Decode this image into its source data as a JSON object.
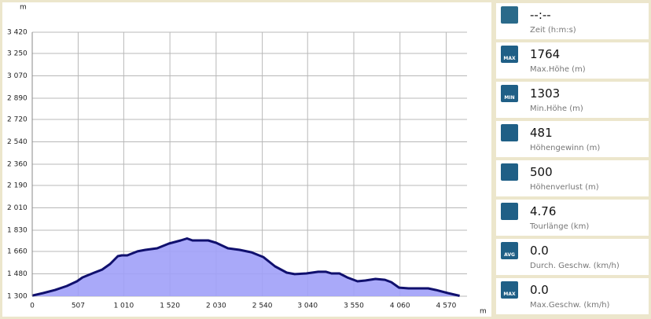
{
  "chart_data": {
    "type": "area",
    "y_unit": "m",
    "x_unit": "m",
    "x": [
      0,
      121,
      252,
      382,
      494,
      555,
      685,
      772,
      859,
      945,
      989,
      1049,
      1162,
      1249,
      1379,
      1509,
      1639,
      1709,
      1769,
      1943,
      2030,
      2160,
      2290,
      2420,
      2550,
      2680,
      2810,
      2897,
      3027,
      3157,
      3244,
      3304,
      3391,
      3478,
      3591,
      3678,
      3790,
      3894,
      3964,
      4050,
      4154,
      4371,
      4458,
      4588,
      4718
    ],
    "values": [
      1305,
      1325,
      1350,
      1382,
      1420,
      1451,
      1489,
      1514,
      1559,
      1622,
      1628,
      1628,
      1660,
      1672,
      1685,
      1723,
      1748,
      1764,
      1748,
      1748,
      1729,
      1685,
      1672,
      1653,
      1615,
      1540,
      1489,
      1477,
      1483,
      1496,
      1496,
      1483,
      1483,
      1451,
      1420,
      1426,
      1439,
      1432,
      1413,
      1369,
      1363,
      1363,
      1350,
      1325,
      1303
    ],
    "color": "#a0a0f8",
    "line_color": "#10106e",
    "xlim": [
      0,
      4800
    ],
    "ylim": [
      1300,
      3420
    ],
    "xticks": [
      0,
      507,
      {
        "value": 1010,
        "label": "1 010"
      },
      {
        "value": 1520,
        "label": "1 520"
      },
      {
        "value": 2030,
        "label": "2 030"
      },
      {
        "value": 2540,
        "label": "2 540"
      },
      {
        "value": 3040,
        "label": "3 040"
      },
      {
        "value": 3550,
        "label": "3 550"
      },
      {
        "value": 4060,
        "label": "4 060"
      },
      {
        "value": 4570,
        "label": "4 570"
      }
    ],
    "yticks": [
      {
        "value": 1300,
        "label": "1 300"
      },
      {
        "value": 1480,
        "label": "1 480"
      },
      {
        "value": 1660,
        "label": "1 660"
      },
      {
        "value": 1830,
        "label": "1 830"
      },
      {
        "value": 2010,
        "label": "2 010"
      },
      {
        "value": 2190,
        "label": "2 190"
      },
      {
        "value": 2360,
        "label": "2 360"
      },
      {
        "value": 2540,
        "label": "2 540"
      },
      {
        "value": 2720,
        "label": "2 720"
      },
      {
        "value": 2890,
        "label": "2 890"
      },
      {
        "value": 3070,
        "label": "3 070"
      },
      {
        "value": 3250,
        "label": "3 250"
      },
      {
        "value": 3420,
        "label": "3 420"
      }
    ],
    "grid": true
  },
  "stats": [
    {
      "value": "--:--",
      "label": "Zeit (h:m:s)",
      "icon_color": "#2a6a8a"
    },
    {
      "value": "1764",
      "label": "Max.Höhe (m)",
      "badge": "MAX",
      "icon_color": "#1f5f86"
    },
    {
      "value": "1303",
      "label": "Min.Höhe (m)",
      "badge": "MIN",
      "icon_color": "#1f5f86"
    },
    {
      "value": "481",
      "label": "Höhengewinn (m)",
      "icon_color": "#1f5f86"
    },
    {
      "value": "500",
      "label": "Höhenverlust (m)",
      "icon_color": "#1f5f86"
    },
    {
      "value": "4.76",
      "label": "Tourlänge (km)",
      "icon_color": "#1f5f86"
    },
    {
      "value": "0.0",
      "label": "Durch. Geschw. (km/h)",
      "badge": "AVG",
      "icon_color": "#1f5f86"
    },
    {
      "value": "0.0",
      "label": "Max.Geschw. (km/h)",
      "badge": "MAX",
      "icon_color": "#1f5f86"
    }
  ]
}
